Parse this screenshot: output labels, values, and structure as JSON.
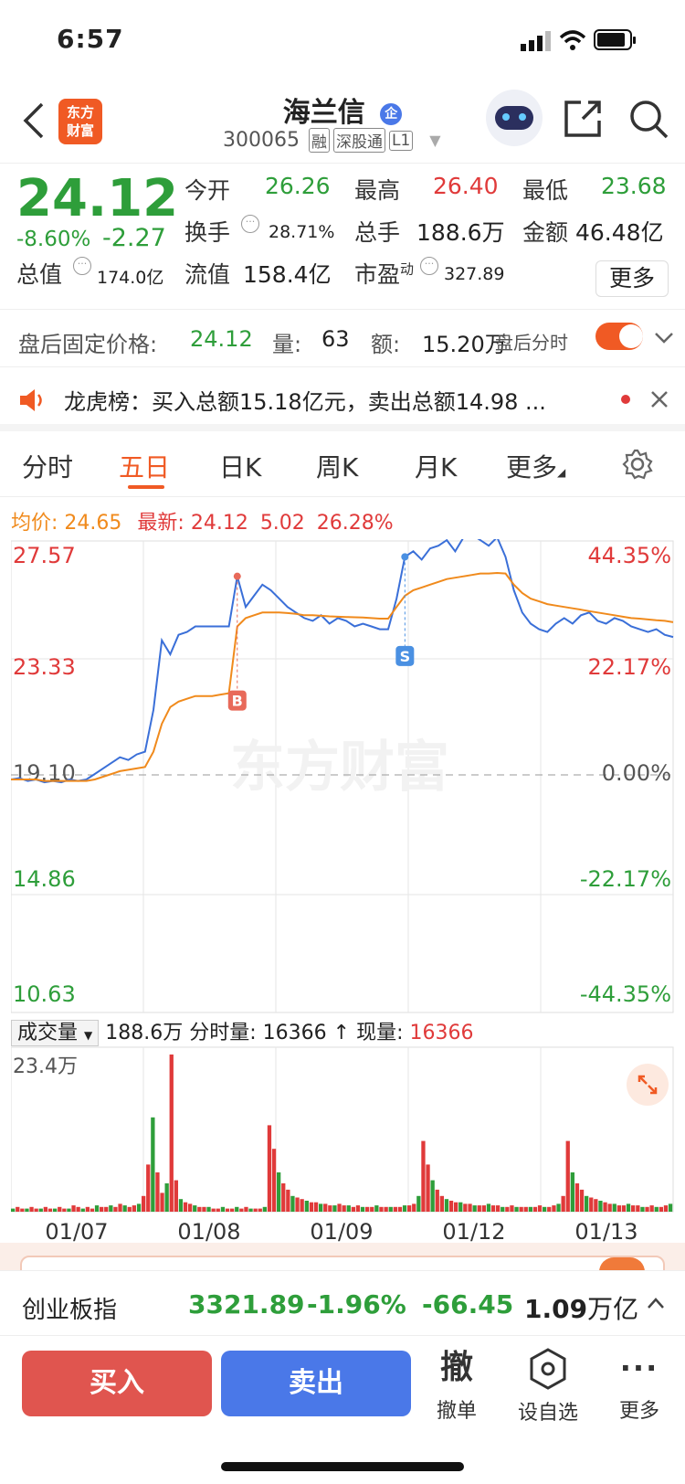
{
  "status_bar": {
    "time": "6:57"
  },
  "header": {
    "logo_top": "东方",
    "logo_bottom": "财富",
    "stock_name": "海兰信",
    "qi_badge": "企",
    "stock_code": "300065",
    "tags": [
      "融",
      "深股通",
      "L1"
    ]
  },
  "quote": {
    "price": "24.12",
    "change_pct": "-8.60%",
    "change": "-2.27",
    "open_label": "今开",
    "open": "26.26",
    "high_label": "最高",
    "high": "26.40",
    "low_label": "最低",
    "low": "23.68",
    "turnover_label": "换手",
    "turnover": "28.71%",
    "volume_label": "总手",
    "volume": "188.6万",
    "amount_label": "金额",
    "amount": "46.48亿",
    "mktcap_label": "总值",
    "mktcap": "174.0亿",
    "float_label": "流值",
    "float": "158.4亿",
    "pe_label": "市盈",
    "pe_sup": "动",
    "pe": "327.89",
    "more_label": "更多"
  },
  "after_hours": {
    "label": "盘后固定价格:",
    "price": "24.12",
    "vol_label": "量:",
    "vol": "63",
    "amt_label": "额:",
    "amt": "15.20万",
    "toggle_label": "盘后分时"
  },
  "notice": {
    "text": "龙虎榜：买入总额15.18亿元，卖出总额14.98 ..."
  },
  "tabs": [
    "分时",
    "五日",
    "日K",
    "周K",
    "月K",
    "更多"
  ],
  "chart_info": {
    "avg_label": "均价:",
    "avg": "24.65",
    "latest_label": "最新:",
    "latest": "24.12",
    "chg": "5.02",
    "chg_pct": "26.28%"
  },
  "chart_data": {
    "type": "line",
    "y_labels_left": [
      "27.57",
      "23.33",
      "19.10",
      "14.86",
      "10.63"
    ],
    "y_labels_right": [
      "44.35%",
      "22.17%",
      "0.00%",
      "-22.17%",
      "-44.35%"
    ],
    "x_labels": [
      "01/07",
      "01/08",
      "01/09",
      "01/12",
      "01/13"
    ],
    "ylim": [
      10.63,
      27.57
    ],
    "watermark": "东方财富",
    "buy_marker": "B",
    "sell_marker": "S",
    "series": [
      {
        "values": [
          19.0,
          19.05,
          18.95,
          19.0,
          18.9,
          18.95,
          18.9,
          19.0,
          18.95,
          19.0,
          19.2,
          19.4,
          19.6,
          19.8,
          19.7,
          19.9,
          20.0,
          21.5,
          24.0,
          23.5,
          24.2,
          24.3,
          24.5,
          24.5,
          24.5,
          24.5,
          24.5,
          26.3,
          25.2,
          25.6,
          26.0,
          25.8,
          25.5,
          25.2,
          25.0,
          24.8,
          24.7,
          24.9,
          24.6,
          24.8,
          24.7,
          24.5,
          24.6,
          24.5,
          24.4,
          24.4,
          25.5,
          27.0,
          27.2,
          26.9,
          27.3,
          27.4,
          27.6,
          27.2,
          27.7,
          27.8,
          27.6,
          27.4,
          27.7,
          27.0,
          25.8,
          25.0,
          24.6,
          24.4,
          24.3,
          24.6,
          24.8,
          24.6,
          24.9,
          25.0,
          24.7,
          24.6,
          24.8,
          24.7,
          24.5,
          24.4,
          24.3,
          24.4,
          24.2,
          24.12
        ]
      },
      {
        "values": [
          19.0,
          19.0,
          19.0,
          19.0,
          18.95,
          18.95,
          18.95,
          18.95,
          18.95,
          18.95,
          19.0,
          19.1,
          19.2,
          19.3,
          19.35,
          19.4,
          19.45,
          20.0,
          21.0,
          21.6,
          21.8,
          21.9,
          22.0,
          22.0,
          22.0,
          22.05,
          22.1,
          24.5,
          24.8,
          24.9,
          25.0,
          25.0,
          25.0,
          24.98,
          24.95,
          24.9,
          24.9,
          24.88,
          24.86,
          24.85,
          24.84,
          24.83,
          24.82,
          24.8,
          24.78,
          24.78,
          25.2,
          25.6,
          25.8,
          25.9,
          26.0,
          26.1,
          26.2,
          26.25,
          26.3,
          26.35,
          26.4,
          26.4,
          26.42,
          26.4,
          26.0,
          25.7,
          25.5,
          25.4,
          25.3,
          25.25,
          25.2,
          25.15,
          25.1,
          25.05,
          25.0,
          24.95,
          24.9,
          24.85,
          24.8,
          24.78,
          24.75,
          24.72,
          24.7,
          24.65
        ]
      }
    ]
  },
  "volume": {
    "selector": "成交量",
    "total": "188.6万",
    "tick_label": "分时量:",
    "tick_val": "16366",
    "arrow": "↑",
    "cur_label": "现量:",
    "cur_val": "16366",
    "ymax_label": "23.4万",
    "bars": [
      2,
      3,
      2,
      2,
      3,
      2,
      2,
      3,
      2,
      2,
      3,
      2,
      2,
      4,
      3,
      2,
      3,
      2,
      4,
      3,
      3,
      4,
      3,
      5,
      4,
      3,
      4,
      5,
      10,
      30,
      60,
      25,
      12,
      18,
      100,
      20,
      8,
      6,
      5,
      4,
      3,
      3,
      3,
      2,
      2,
      3,
      2,
      2,
      3,
      2,
      3,
      2,
      2,
      2,
      3,
      55,
      40,
      25,
      18,
      14,
      10,
      9,
      8,
      7,
      6,
      6,
      5,
      5,
      4,
      4,
      5,
      4,
      4,
      3,
      4,
      3,
      3,
      3,
      4,
      3,
      3,
      3,
      3,
      3,
      4,
      4,
      5,
      10,
      45,
      30,
      20,
      14,
      10,
      8,
      7,
      6,
      6,
      5,
      5,
      4,
      4,
      4,
      5,
      4,
      4,
      3,
      3,
      4,
      3,
      3,
      3,
      3,
      3,
      4,
      3,
      3,
      4,
      5,
      10,
      45,
      25,
      18,
      14,
      10,
      9,
      8,
      7,
      6,
      5,
      5,
      4,
      4,
      5,
      4,
      4,
      3,
      3,
      4,
      3,
      3,
      4,
      5
    ]
  },
  "index_bar": {
    "name": "创业板指",
    "value": "3321.89",
    "pct": "-1.96%",
    "chg": "-66.45",
    "amount": "1.09",
    "amount_unit": "万亿"
  },
  "actions": {
    "buy": "买入",
    "sell": "卖出",
    "cancel_icon": "撤",
    "cancel_label": "撤单",
    "watch_label": "设自选",
    "more_label": "更多"
  },
  "colors": {
    "brand": "#f05a24",
    "up": "#e03a3a",
    "down": "#2e9e3a",
    "avg": "#f08a1c",
    "price": "#3a6fd8"
  }
}
